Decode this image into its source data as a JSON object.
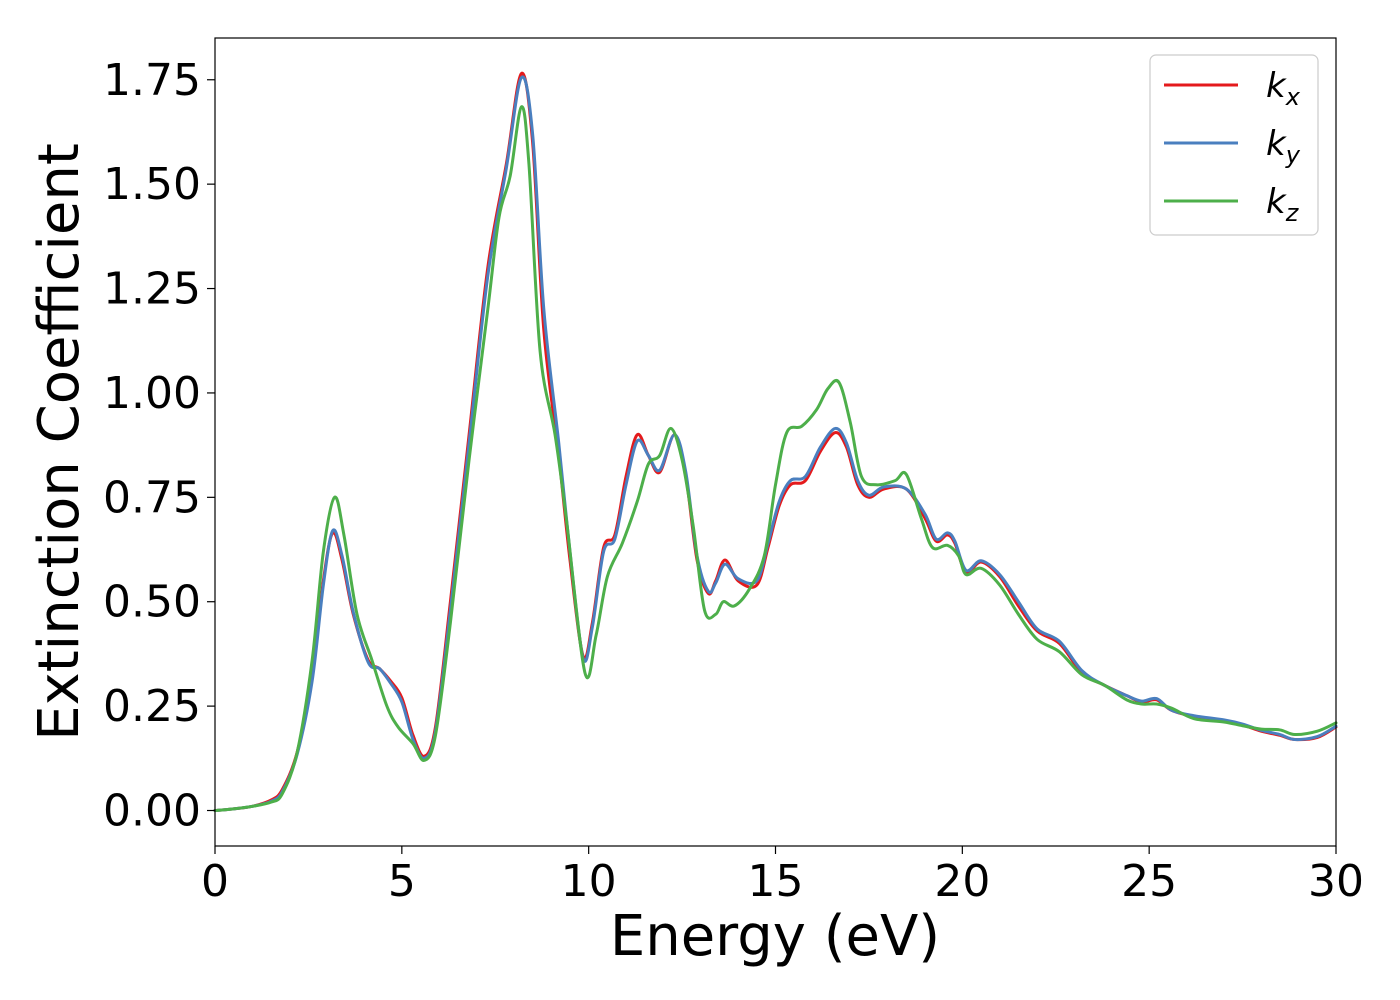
{
  "chart_data": {
    "type": "line",
    "xlabel": "Energy (eV)",
    "ylabel": "Extinction Coefficient",
    "xlim": [
      0,
      30
    ],
    "ylim": [
      -0.085,
      1.85
    ],
    "xticks": [
      0,
      5,
      10,
      15,
      20,
      25,
      30
    ],
    "xtick_labels": [
      "0",
      "5",
      "10",
      "15",
      "20",
      "25",
      "30"
    ],
    "yticks": [
      0,
      0.25,
      0.5,
      0.75,
      1.0,
      1.25,
      1.5,
      1.75
    ],
    "ytick_labels": [
      "0.00",
      "0.25",
      "0.50",
      "0.75",
      "1.00",
      "1.25",
      "1.50",
      "1.75"
    ],
    "grid": false,
    "legend_position": "top-right",
    "series": [
      {
        "name": "k_x",
        "label_base": "k",
        "label_sub": "x",
        "color": "#e41a1c",
        "points": [
          [
            0,
            0
          ],
          [
            0.5,
            0.004
          ],
          [
            1.0,
            0.01
          ],
          [
            1.5,
            0.025
          ],
          [
            1.8,
            0.05
          ],
          [
            2.2,
            0.14
          ],
          [
            2.6,
            0.32
          ],
          [
            2.9,
            0.55
          ],
          [
            3.15,
            0.665
          ],
          [
            3.4,
            0.6
          ],
          [
            3.7,
            0.47
          ],
          [
            4.1,
            0.36
          ],
          [
            4.4,
            0.34
          ],
          [
            4.7,
            0.31
          ],
          [
            5.0,
            0.27
          ],
          [
            5.3,
            0.18
          ],
          [
            5.6,
            0.13
          ],
          [
            5.9,
            0.2
          ],
          [
            6.3,
            0.5
          ],
          [
            6.8,
            0.9
          ],
          [
            7.3,
            1.3
          ],
          [
            7.8,
            1.55
          ],
          [
            8.2,
            1.765
          ],
          [
            8.5,
            1.6
          ],
          [
            8.8,
            1.15
          ],
          [
            9.2,
            0.85
          ],
          [
            9.5,
            0.6
          ],
          [
            9.85,
            0.37
          ],
          [
            10.1,
            0.45
          ],
          [
            10.4,
            0.63
          ],
          [
            10.7,
            0.66
          ],
          [
            11.0,
            0.8
          ],
          [
            11.3,
            0.9
          ],
          [
            11.6,
            0.85
          ],
          [
            11.9,
            0.81
          ],
          [
            12.3,
            0.9
          ],
          [
            12.6,
            0.8
          ],
          [
            12.9,
            0.6
          ],
          [
            13.2,
            0.52
          ],
          [
            13.4,
            0.55
          ],
          [
            13.65,
            0.6
          ],
          [
            14.0,
            0.55
          ],
          [
            14.5,
            0.54
          ],
          [
            14.8,
            0.63
          ],
          [
            15.1,
            0.73
          ],
          [
            15.4,
            0.78
          ],
          [
            15.8,
            0.79
          ],
          [
            16.2,
            0.86
          ],
          [
            16.6,
            0.905
          ],
          [
            16.9,
            0.87
          ],
          [
            17.2,
            0.78
          ],
          [
            17.5,
            0.75
          ],
          [
            17.9,
            0.77
          ],
          [
            18.5,
            0.77
          ],
          [
            19.0,
            0.7
          ],
          [
            19.3,
            0.645
          ],
          [
            19.6,
            0.66
          ],
          [
            19.8,
            0.64
          ],
          [
            20.1,
            0.57
          ],
          [
            20.5,
            0.595
          ],
          [
            21.0,
            0.56
          ],
          [
            21.5,
            0.49
          ],
          [
            22.0,
            0.43
          ],
          [
            22.6,
            0.4
          ],
          [
            23.2,
            0.33
          ],
          [
            23.8,
            0.3
          ],
          [
            24.4,
            0.275
          ],
          [
            24.8,
            0.26
          ],
          [
            25.2,
            0.265
          ],
          [
            25.6,
            0.24
          ],
          [
            26.2,
            0.225
          ],
          [
            27.0,
            0.215
          ],
          [
            27.5,
            0.205
          ],
          [
            28.0,
            0.19
          ],
          [
            28.5,
            0.18
          ],
          [
            28.9,
            0.17
          ],
          [
            29.5,
            0.175
          ],
          [
            30.0,
            0.2
          ]
        ]
      },
      {
        "name": "k_y",
        "label_base": "k",
        "label_sub": "y",
        "color": "#4a7fbf",
        "points": [
          [
            0,
            0
          ],
          [
            0.5,
            0.004
          ],
          [
            1.0,
            0.01
          ],
          [
            1.5,
            0.022
          ],
          [
            1.8,
            0.045
          ],
          [
            2.2,
            0.135
          ],
          [
            2.6,
            0.31
          ],
          [
            2.9,
            0.54
          ],
          [
            3.15,
            0.67
          ],
          [
            3.4,
            0.61
          ],
          [
            3.7,
            0.475
          ],
          [
            4.1,
            0.355
          ],
          [
            4.4,
            0.34
          ],
          [
            4.7,
            0.305
          ],
          [
            5.0,
            0.26
          ],
          [
            5.3,
            0.17
          ],
          [
            5.6,
            0.125
          ],
          [
            5.9,
            0.19
          ],
          [
            6.3,
            0.48
          ],
          [
            6.8,
            0.88
          ],
          [
            7.3,
            1.28
          ],
          [
            7.8,
            1.54
          ],
          [
            8.2,
            1.755
          ],
          [
            8.5,
            1.62
          ],
          [
            8.8,
            1.2
          ],
          [
            9.2,
            0.88
          ],
          [
            9.5,
            0.62
          ],
          [
            9.85,
            0.365
          ],
          [
            10.1,
            0.44
          ],
          [
            10.4,
            0.62
          ],
          [
            10.7,
            0.65
          ],
          [
            11.0,
            0.78
          ],
          [
            11.3,
            0.885
          ],
          [
            11.6,
            0.85
          ],
          [
            11.9,
            0.815
          ],
          [
            12.3,
            0.9
          ],
          [
            12.6,
            0.81
          ],
          [
            12.9,
            0.61
          ],
          [
            13.2,
            0.525
          ],
          [
            13.4,
            0.545
          ],
          [
            13.65,
            0.59
          ],
          [
            14.0,
            0.555
          ],
          [
            14.5,
            0.55
          ],
          [
            14.8,
            0.64
          ],
          [
            15.1,
            0.74
          ],
          [
            15.4,
            0.79
          ],
          [
            15.8,
            0.8
          ],
          [
            16.2,
            0.87
          ],
          [
            16.6,
            0.915
          ],
          [
            16.9,
            0.88
          ],
          [
            17.2,
            0.79
          ],
          [
            17.5,
            0.755
          ],
          [
            17.9,
            0.775
          ],
          [
            18.5,
            0.77
          ],
          [
            19.0,
            0.71
          ],
          [
            19.3,
            0.65
          ],
          [
            19.6,
            0.665
          ],
          [
            19.8,
            0.645
          ],
          [
            20.1,
            0.575
          ],
          [
            20.5,
            0.598
          ],
          [
            21.0,
            0.565
          ],
          [
            21.5,
            0.5
          ],
          [
            22.0,
            0.435
          ],
          [
            22.6,
            0.405
          ],
          [
            23.2,
            0.335
          ],
          [
            23.8,
            0.3
          ],
          [
            24.4,
            0.275
          ],
          [
            24.8,
            0.262
          ],
          [
            25.2,
            0.268
          ],
          [
            25.6,
            0.24
          ],
          [
            26.2,
            0.227
          ],
          [
            27.0,
            0.217
          ],
          [
            27.5,
            0.207
          ],
          [
            28.0,
            0.192
          ],
          [
            28.5,
            0.182
          ],
          [
            28.9,
            0.17
          ],
          [
            29.5,
            0.177
          ],
          [
            30.0,
            0.202
          ]
        ]
      },
      {
        "name": "k_z",
        "label_base": "k",
        "label_sub": "z",
        "color": "#4daf4a",
        "points": [
          [
            0,
            0
          ],
          [
            0.5,
            0.004
          ],
          [
            1.0,
            0.01
          ],
          [
            1.5,
            0.02
          ],
          [
            1.8,
            0.04
          ],
          [
            2.2,
            0.14
          ],
          [
            2.6,
            0.36
          ],
          [
            2.9,
            0.62
          ],
          [
            3.2,
            0.75
          ],
          [
            3.45,
            0.66
          ],
          [
            3.8,
            0.47
          ],
          [
            4.2,
            0.36
          ],
          [
            4.6,
            0.25
          ],
          [
            4.9,
            0.2
          ],
          [
            5.3,
            0.16
          ],
          [
            5.6,
            0.12
          ],
          [
            5.9,
            0.18
          ],
          [
            6.3,
            0.45
          ],
          [
            6.8,
            0.84
          ],
          [
            7.3,
            1.2
          ],
          [
            7.6,
            1.42
          ],
          [
            7.9,
            1.52
          ],
          [
            8.2,
            1.685
          ],
          [
            8.4,
            1.55
          ],
          [
            8.7,
            1.1
          ],
          [
            9.1,
            0.9
          ],
          [
            9.4,
            0.7
          ],
          [
            9.9,
            0.33
          ],
          [
            10.2,
            0.42
          ],
          [
            10.5,
            0.56
          ],
          [
            10.9,
            0.64
          ],
          [
            11.3,
            0.74
          ],
          [
            11.6,
            0.83
          ],
          [
            11.9,
            0.85
          ],
          [
            12.2,
            0.915
          ],
          [
            12.5,
            0.84
          ],
          [
            12.8,
            0.68
          ],
          [
            13.1,
            0.48
          ],
          [
            13.4,
            0.47
          ],
          [
            13.6,
            0.5
          ],
          [
            13.9,
            0.49
          ],
          [
            14.3,
            0.53
          ],
          [
            14.7,
            0.61
          ],
          [
            15.0,
            0.78
          ],
          [
            15.3,
            0.905
          ],
          [
            15.7,
            0.92
          ],
          [
            16.1,
            0.96
          ],
          [
            16.4,
            1.01
          ],
          [
            16.7,
            1.025
          ],
          [
            17.0,
            0.93
          ],
          [
            17.3,
            0.8
          ],
          [
            17.7,
            0.78
          ],
          [
            18.2,
            0.79
          ],
          [
            18.5,
            0.805
          ],
          [
            18.9,
            0.7
          ],
          [
            19.2,
            0.63
          ],
          [
            19.6,
            0.635
          ],
          [
            19.9,
            0.61
          ],
          [
            20.1,
            0.565
          ],
          [
            20.5,
            0.58
          ],
          [
            21.0,
            0.54
          ],
          [
            21.5,
            0.47
          ],
          [
            22.0,
            0.41
          ],
          [
            22.6,
            0.38
          ],
          [
            23.2,
            0.325
          ],
          [
            23.8,
            0.3
          ],
          [
            24.4,
            0.265
          ],
          [
            24.8,
            0.255
          ],
          [
            25.2,
            0.255
          ],
          [
            25.6,
            0.245
          ],
          [
            26.2,
            0.22
          ],
          [
            27.0,
            0.212
          ],
          [
            27.5,
            0.203
          ],
          [
            28.0,
            0.195
          ],
          [
            28.5,
            0.193
          ],
          [
            28.9,
            0.182
          ],
          [
            29.5,
            0.19
          ],
          [
            30.0,
            0.21
          ]
        ]
      }
    ]
  }
}
